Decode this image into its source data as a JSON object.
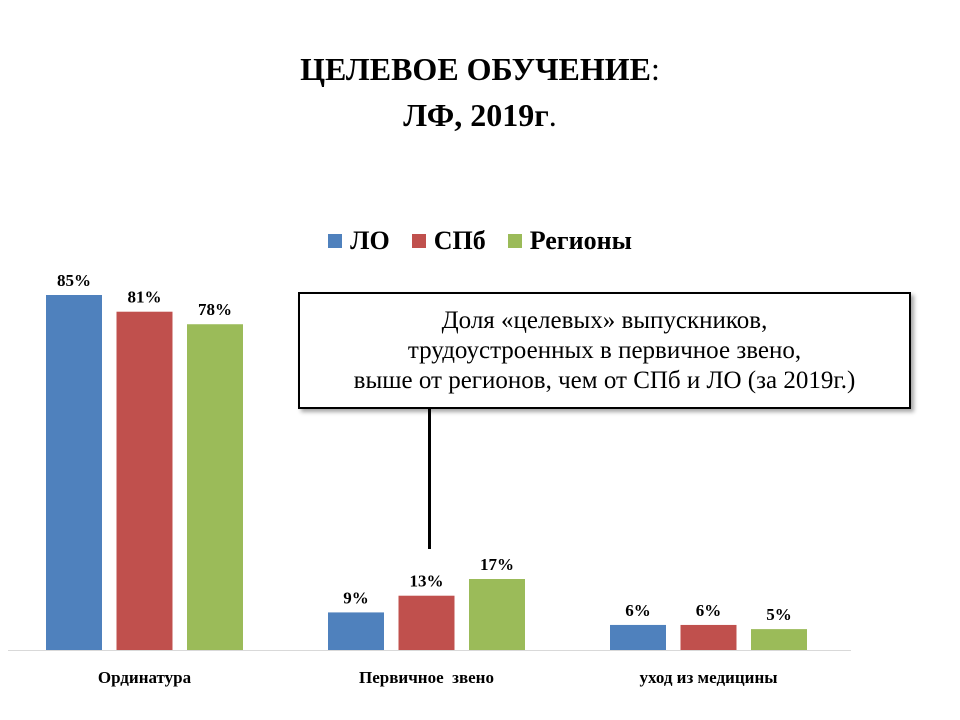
{
  "title": {
    "line1_main": "ЦЕЛЕВОЕ ОБУЧЕНИЕ",
    "line1_colon": ":",
    "line2_main": "ЛФ, 2019г",
    "line2_dot": "."
  },
  "chart_data": {
    "type": "bar",
    "categories": [
      "Ординатура",
      "Первичное  звено",
      "уход из медицины"
    ],
    "series": [
      {
        "name": "ЛО",
        "values": [
          85,
          9,
          6
        ],
        "labels": [
          "85%",
          "9%",
          "6%"
        ]
      },
      {
        "name": "СПб",
        "values": [
          81,
          13,
          6
        ],
        "labels": [
          "81%",
          "13%",
          "6%"
        ]
      },
      {
        "name": "Регионы",
        "values": [
          78,
          17,
          5
        ],
        "labels": [
          "78%",
          "17%",
          "5%"
        ]
      }
    ],
    "ylim": [
      0,
      85
    ],
    "legend_position": "top",
    "grid": false,
    "colors": [
      "#4f81bd",
      "#c0504d",
      "#9bbb59"
    ]
  },
  "callout": {
    "lines": [
      "Доля «целевых» выпускников,",
      "трудоустроенных в первичное звено,",
      "выше от регионов, чем от СПб и ЛО (за 2019г.)"
    ]
  }
}
